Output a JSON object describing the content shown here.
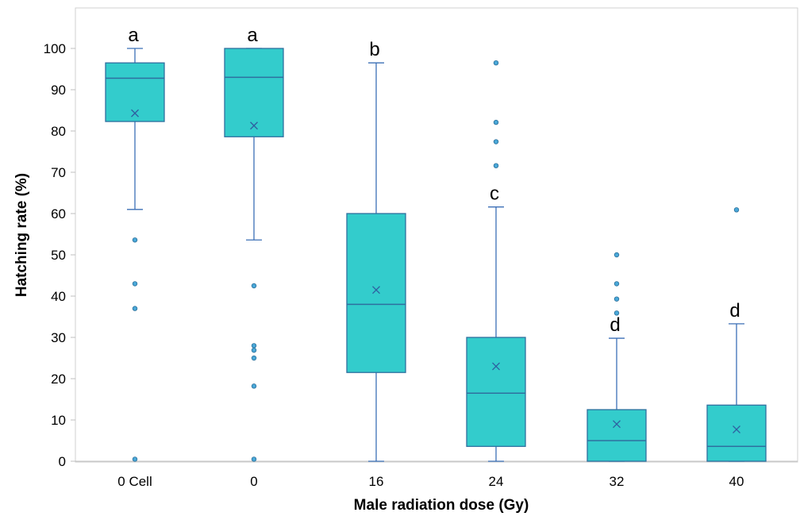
{
  "chart_data": {
    "type": "box",
    "title": "",
    "xlabel": "Male radiation dose (Gy)",
    "ylabel": "Hatching rate  (%)",
    "ylim": [
      0,
      110
    ],
    "yticks": [
      0,
      10,
      20,
      30,
      40,
      50,
      60,
      70,
      80,
      90,
      100
    ],
    "grid": false,
    "colors": {
      "box_fill": "#33cccc",
      "box_stroke": "#2f6f9f",
      "whisker": "#3b6fb6",
      "outlier_fill": "#4aa8d8",
      "mean_marker": "#2f5fa0",
      "frame": "#d0d0d0"
    },
    "categories": [
      "0 Cell",
      "0",
      "16",
      "24",
      "32",
      "40"
    ],
    "groups": [
      {
        "label": "0 Cell",
        "min": 61,
        "q1": 82.3,
        "median": 92.8,
        "q3": 96.5,
        "max": 100,
        "mean": 84.3,
        "outliers": [
          53.6,
          43,
          37,
          0.5
        ],
        "letter": "a"
      },
      {
        "label": "0",
        "min": 53.6,
        "q1": 78.6,
        "median": 93,
        "q3": 100,
        "max": 100,
        "mean": 81.3,
        "outliers": [
          42.5,
          28,
          26.9,
          25,
          18.2,
          0.5
        ],
        "letter": "a"
      },
      {
        "label": "16",
        "min": 0,
        "q1": 21.5,
        "median": 38,
        "q3": 60,
        "max": 96.5,
        "mean": 41.5,
        "outliers": [],
        "letter": "b"
      },
      {
        "label": "24",
        "min": 0,
        "q1": 3.6,
        "median": 16.5,
        "q3": 30,
        "max": 61.6,
        "mean": 23,
        "outliers": [
          96.5,
          82.1,
          77.4,
          71.6
        ],
        "letter": "c"
      },
      {
        "label": "32",
        "min": 0,
        "q1": 0,
        "median": 5,
        "q3": 12.5,
        "max": 29.8,
        "mean": 9,
        "outliers": [
          50,
          43,
          39.3,
          35.9
        ],
        "letter": "d"
      },
      {
        "label": "40",
        "min": 0,
        "q1": 0,
        "median": 3.6,
        "q3": 13.6,
        "max": 33.3,
        "mean": 7.7,
        "outliers": [
          60.9
        ],
        "letter": "d"
      }
    ]
  }
}
